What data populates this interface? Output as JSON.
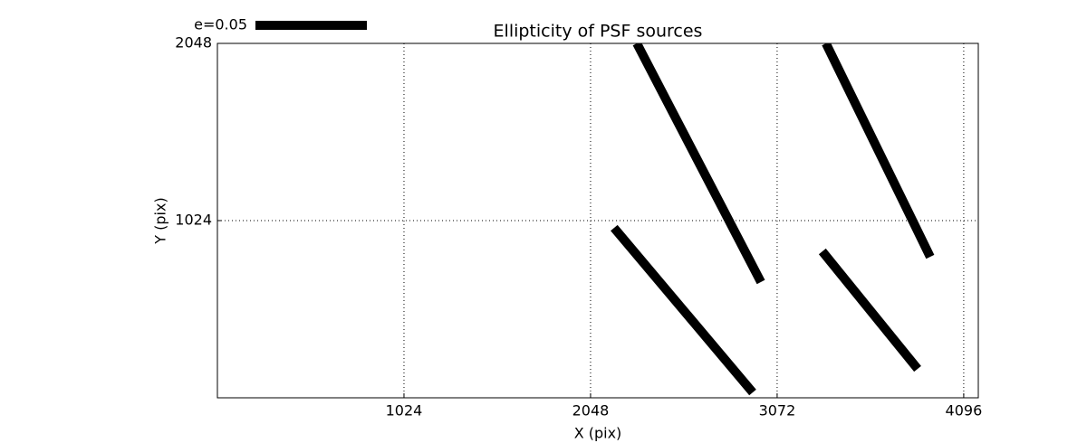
{
  "chart_data": {
    "type": "whisker",
    "title": "Ellipticity of PSF sources",
    "x_label": "X (pix)",
    "y_label": "Y (pix)",
    "key_label": "e=0.05",
    "xlim": [
      0,
      4176
    ],
    "ylim": [
      0,
      2048
    ],
    "xticks": [
      1024,
      2048,
      3072,
      4096
    ],
    "yticks": [
      1024,
      2048
    ],
    "grid": true,
    "color": "#000000",
    "segments": [
      {
        "x": [
          2302,
          2983
        ],
        "y": [
          2048,
          669
        ]
      },
      {
        "x": [
          2177,
          2938
        ],
        "y": [
          982,
          31
        ]
      },
      {
        "x": [
          3340,
          3912
        ],
        "y": [
          2048,
          815
        ]
      },
      {
        "x": [
          3320,
          3843
        ],
        "y": [
          846,
          167
        ]
      }
    ]
  }
}
